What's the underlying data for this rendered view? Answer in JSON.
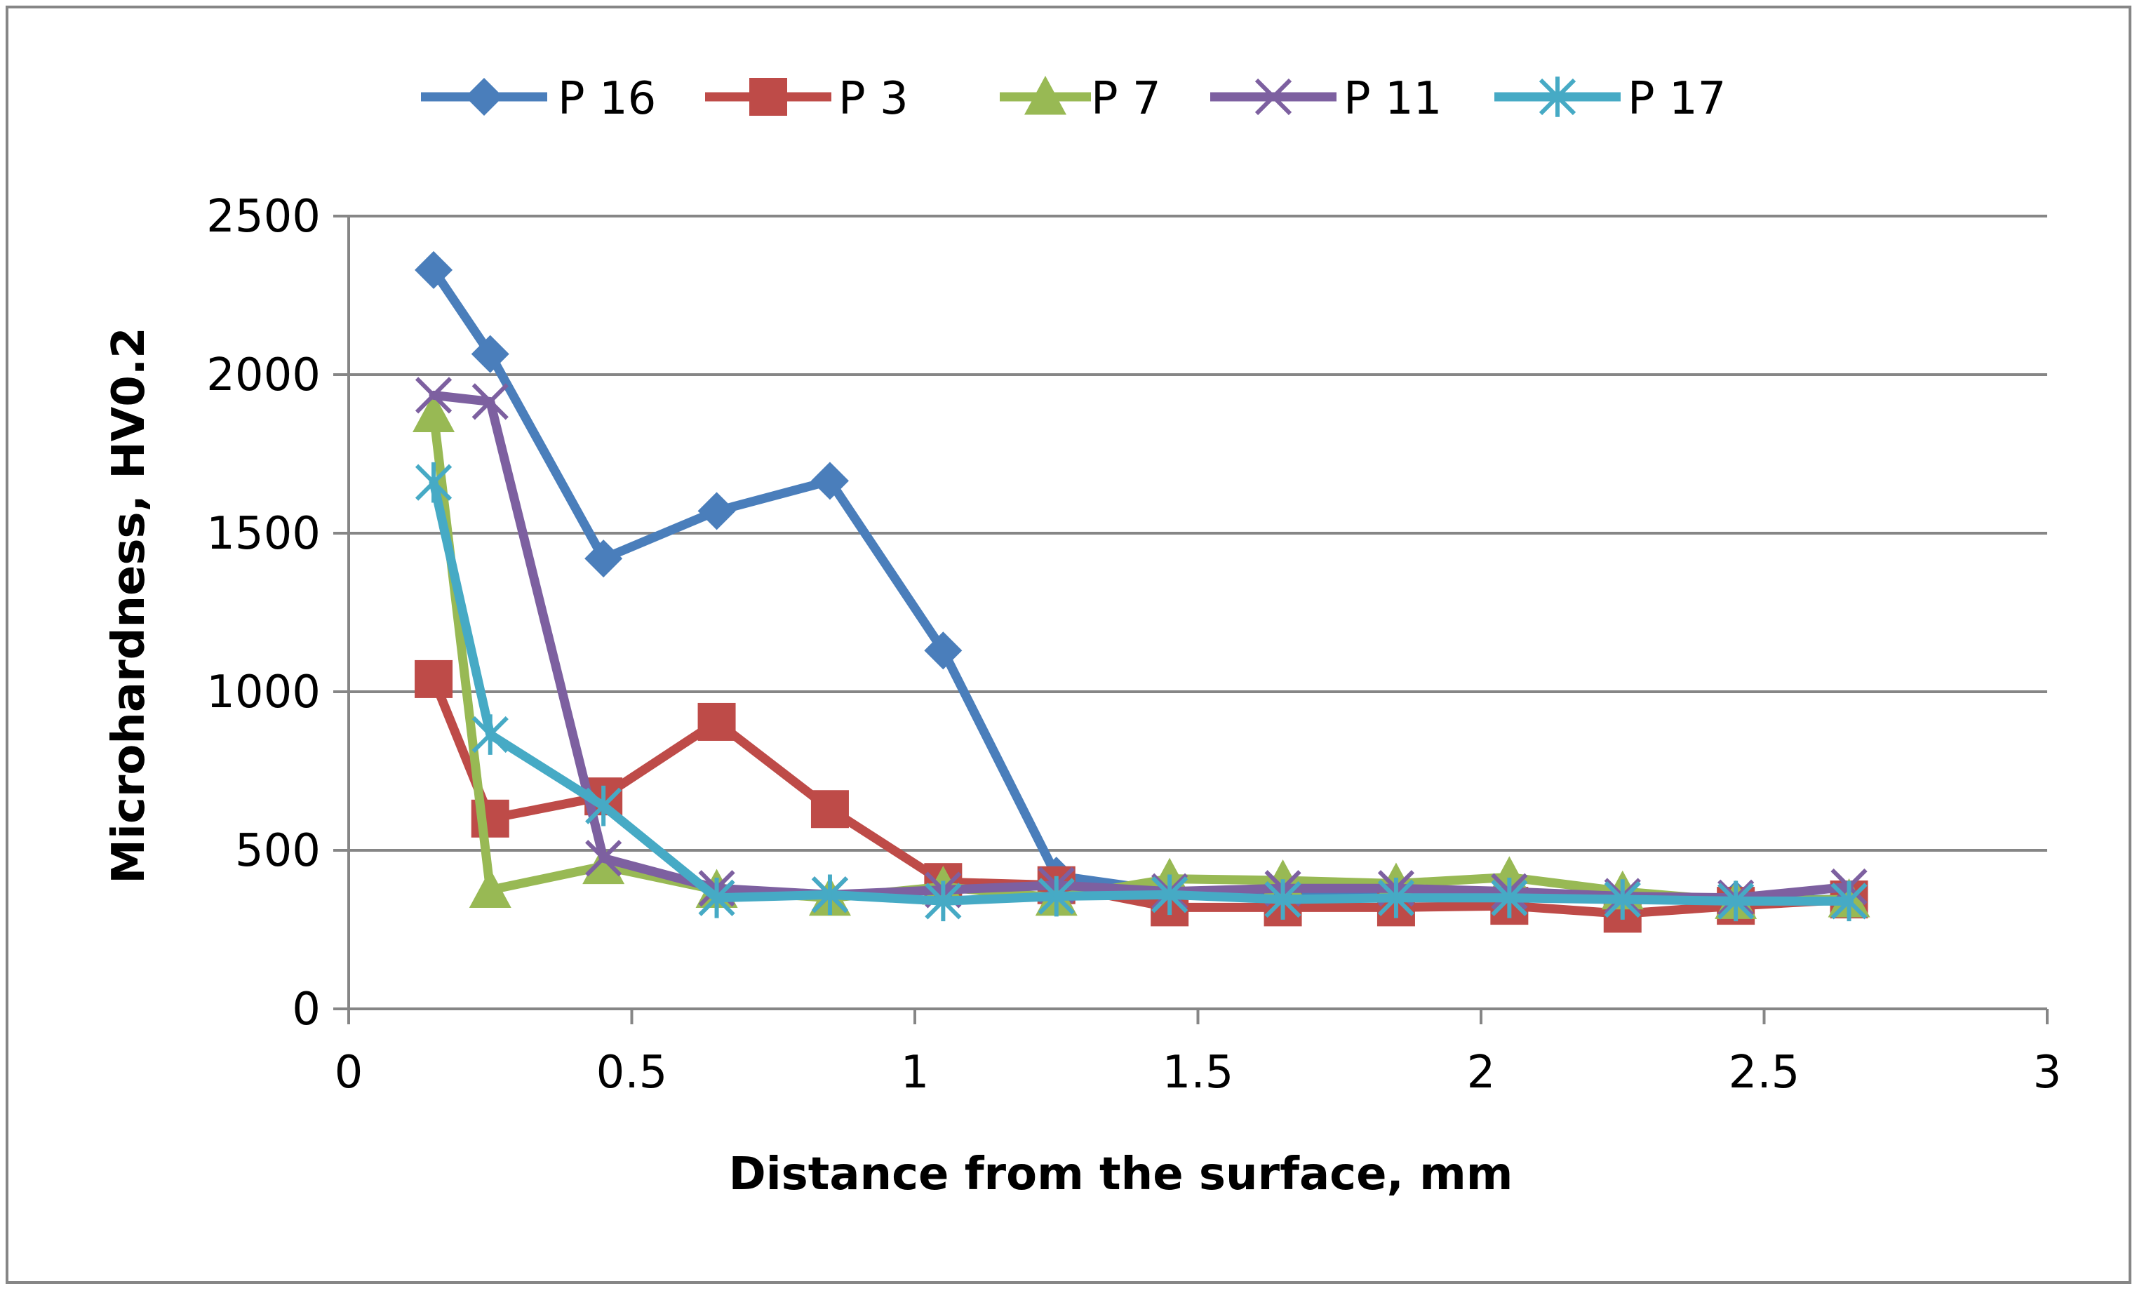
{
  "chart_data": {
    "type": "line",
    "title": "",
    "xlabel": "Distance from the surface, mm",
    "ylabel": "Microhardness, HV0.2",
    "xlim": [
      0,
      3
    ],
    "ylim": [
      0,
      2500
    ],
    "xticks": [
      0,
      0.5,
      1,
      1.5,
      2,
      2.5,
      3
    ],
    "xtick_labels": [
      "0",
      "0.5",
      "1",
      "1.5",
      "2",
      "2.5",
      "3"
    ],
    "yticks": [
      0,
      500,
      1000,
      1500,
      2000,
      2500
    ],
    "ytick_labels": [
      "0",
      "500",
      "1000",
      "1500",
      "2000",
      "2500"
    ],
    "grid": "horizontal",
    "legend_position": "top",
    "series": [
      {
        "name": "P 16",
        "color": "#4A7EBB",
        "marker": "diamond",
        "x": [
          0.15,
          0.25,
          0.45,
          0.65,
          0.85,
          1.05,
          1.25,
          1.45,
          1.65,
          1.85,
          2.05,
          2.25,
          2.45,
          2.65
        ],
        "y": [
          2330,
          2065,
          1420,
          1570,
          1665,
          1130,
          420,
          370,
          360,
          360,
          355,
          350,
          345,
          345
        ]
      },
      {
        "name": "P 3",
        "color": "#BE4B48",
        "marker": "square",
        "x": [
          0.15,
          0.25,
          0.45,
          0.65,
          0.85,
          1.05,
          1.25,
          1.45,
          1.65,
          1.85,
          2.05,
          2.25,
          2.45,
          2.65
        ],
        "y": [
          1040,
          600,
          670,
          905,
          630,
          400,
          390,
          320,
          320,
          320,
          325,
          300,
          325,
          345
        ]
      },
      {
        "name": "P 7",
        "color": "#98B954",
        "marker": "triangle",
        "x": [
          0.15,
          0.25,
          0.45,
          0.65,
          0.85,
          1.05,
          1.25,
          1.45,
          1.65,
          1.85,
          2.05,
          2.25,
          2.45,
          2.65
        ],
        "y": [
          1875,
          375,
          450,
          375,
          350,
          385,
          350,
          410,
          405,
          395,
          415,
          370,
          340,
          345
        ]
      },
      {
        "name": "P 11",
        "color": "#7D60A0",
        "marker": "x",
        "x": [
          0.15,
          0.25,
          0.45,
          0.65,
          0.85,
          1.05,
          1.25,
          1.45,
          1.65,
          1.85,
          2.05,
          2.25,
          2.45,
          2.65
        ],
        "y": [
          1935,
          1915,
          475,
          380,
          360,
          375,
          390,
          370,
          380,
          380,
          370,
          355,
          350,
          385
        ]
      },
      {
        "name": "P 17",
        "color": "#46AAC5",
        "marker": "star",
        "x": [
          0.15,
          0.25,
          0.45,
          0.65,
          0.85,
          1.05,
          1.25,
          1.45,
          1.65,
          1.85,
          2.05,
          2.25,
          2.45,
          2.65
        ],
        "y": [
          1660,
          865,
          640,
          350,
          360,
          340,
          355,
          360,
          345,
          350,
          350,
          345,
          340,
          340
        ]
      }
    ]
  }
}
